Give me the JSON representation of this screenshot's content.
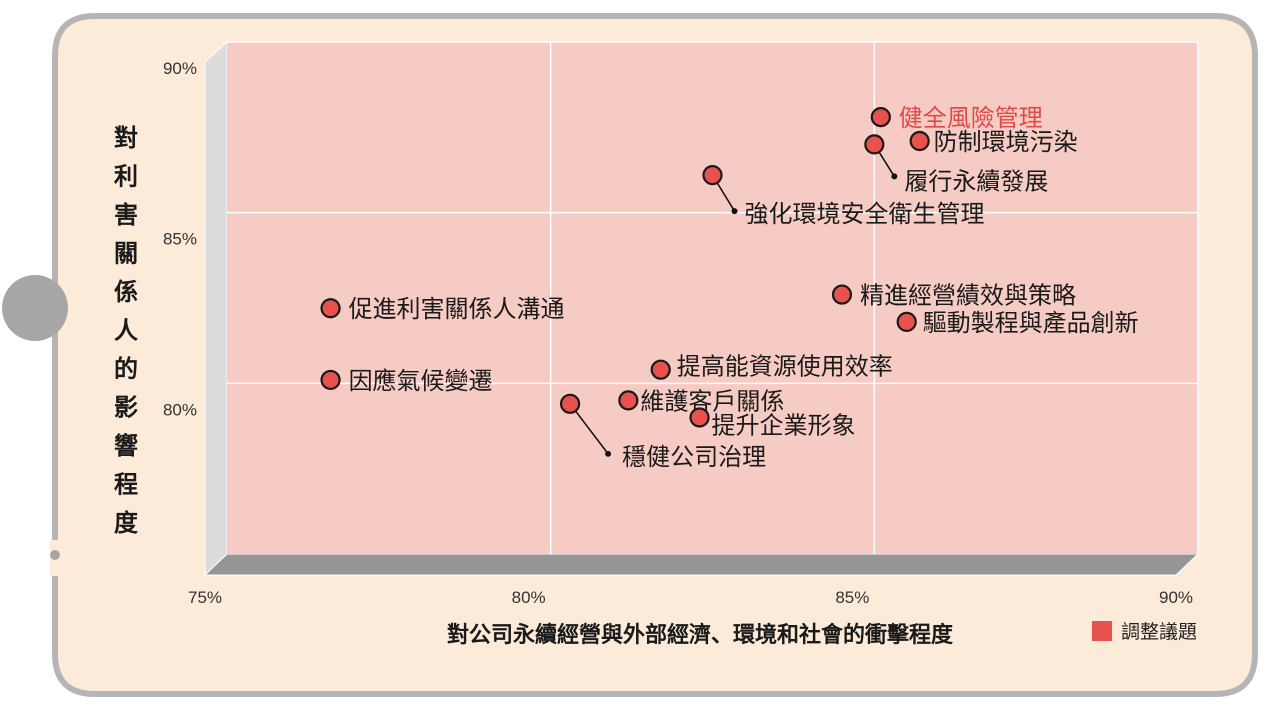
{
  "chart_data": {
    "type": "scatter",
    "xlabel": "對公司永續經營與外部經濟、環境和社會的衝擊程度",
    "ylabel": "對利害關係人的影響程度",
    "xlim": [
      75,
      90
    ],
    "ylim": [
      75,
      90
    ],
    "x_ticks": [
      "75%",
      "80%",
      "85%",
      "90%"
    ],
    "y_ticks": [
      "80%",
      "85%",
      "90%"
    ],
    "grid": true,
    "legend": [
      {
        "label": "調整議題",
        "color": "#e8524e"
      }
    ],
    "points": [
      {
        "label": "健全風險管理",
        "x": 85.1,
        "y": 87.8,
        "highlight": true
      },
      {
        "label": "防制環境污染",
        "x": 85.7,
        "y": 87.1
      },
      {
        "label": "履行永續發展",
        "x": 85.0,
        "y": 87.0
      },
      {
        "label": "強化環境安全衛生管理",
        "x": 82.5,
        "y": 86.1
      },
      {
        "label": "精進經營績效與策略",
        "x": 84.5,
        "y": 82.6
      },
      {
        "label": "驅動製程與產品創新",
        "x": 85.5,
        "y": 81.8
      },
      {
        "label": "促進利害關係人溝通",
        "x": 76.6,
        "y": 82.2
      },
      {
        "label": "提高能資源使用效率",
        "x": 81.7,
        "y": 80.4
      },
      {
        "label": "因應氣候變遷",
        "x": 76.6,
        "y": 80.1
      },
      {
        "label": "維護客戶關係",
        "x": 81.2,
        "y": 79.5
      },
      {
        "label": "提升企業形象",
        "x": 82.3,
        "y": 79.0
      },
      {
        "label": "穩健公司治理",
        "x": 80.3,
        "y": 79.4
      }
    ]
  }
}
